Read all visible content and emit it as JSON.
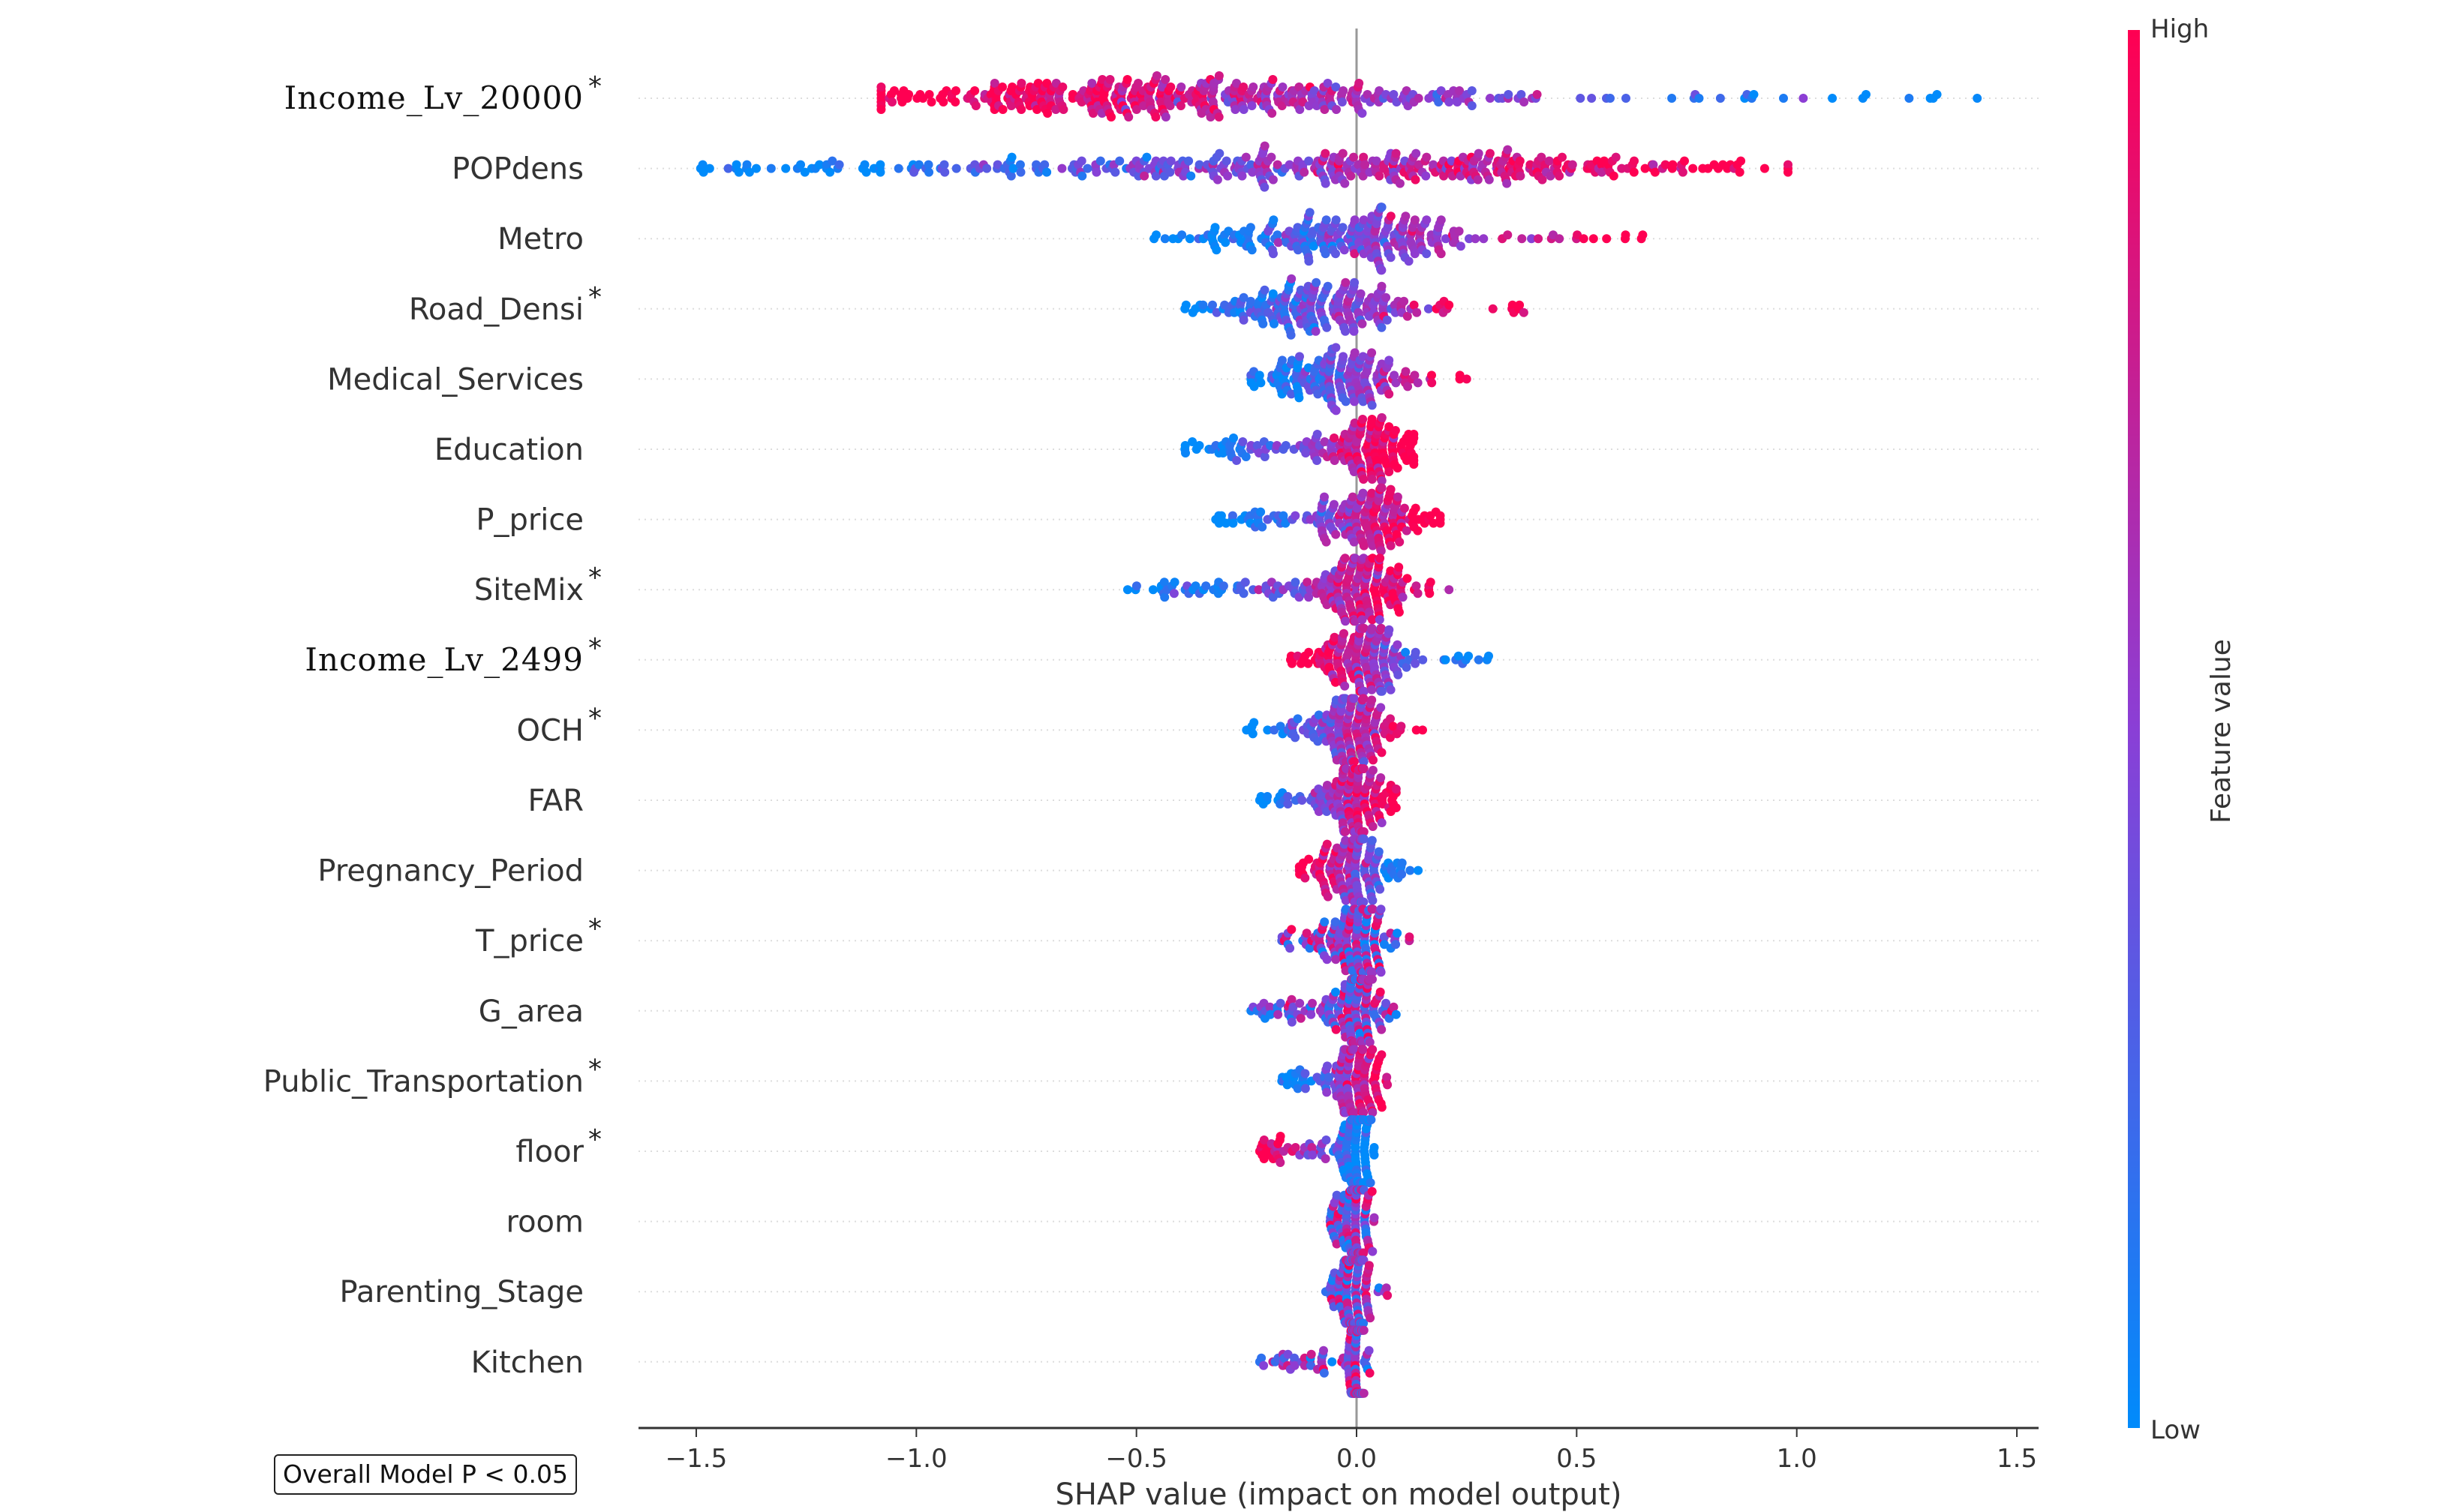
{
  "chart_data": {
    "type": "scatter",
    "subtype": "shap-beeswarm",
    "xlabel": "SHAP value (impact on model output)",
    "xlim": [
      -1.63,
      1.55
    ],
    "xticks": [
      -1.5,
      -1.0,
      -0.5,
      0.0,
      0.5,
      1.0,
      1.5
    ],
    "xtick_labels": [
      "−1.5",
      "−1.0",
      "−0.5",
      "0.0",
      "0.5",
      "1.0",
      "1.5"
    ],
    "colorbar": {
      "label": "Feature value",
      "high_label": "High",
      "low_label": "Low",
      "high_color": "#ff0052",
      "low_color": "#008bfb"
    },
    "annotation": "Overall Model P < 0.05",
    "features": [
      {
        "name": "Income_Lv_20000",
        "significant": true,
        "serif": true,
        "range": [
          -1.08,
          1.41
        ],
        "peak": -0.45,
        "spread": 0.3,
        "high_direction": "negative"
      },
      {
        "name": "POPdens",
        "significant": false,
        "range": [
          -1.49,
          0.98
        ],
        "peak": 0.05,
        "spread": 0.4,
        "high_direction": "positive"
      },
      {
        "name": "Metro",
        "significant": false,
        "range": [
          -0.46,
          0.65
        ],
        "peak": 0.0,
        "spread": 0.15,
        "high_direction": "positive"
      },
      {
        "name": "Road_Densi",
        "significant": true,
        "range": [
          -0.39,
          0.38
        ],
        "peak": -0.09,
        "spread": 0.1,
        "high_direction": "positive"
      },
      {
        "name": "Medical_Services",
        "significant": false,
        "range": [
          -0.24,
          0.25
        ],
        "peak": -0.03,
        "spread": 0.08,
        "high_direction": "positive"
      },
      {
        "name": "Education",
        "significant": false,
        "range": [
          -0.39,
          0.13
        ],
        "peak": 0.03,
        "spread": 0.06,
        "high_direction": "positive"
      },
      {
        "name": "P_price",
        "significant": false,
        "range": [
          -0.32,
          0.19
        ],
        "peak": 0.03,
        "spread": 0.06,
        "high_direction": "positive"
      },
      {
        "name": "SiteMix",
        "significant": true,
        "range": [
          -0.52,
          0.21
        ],
        "peak": 0.0,
        "spread": 0.07,
        "high_direction": "positive"
      },
      {
        "name": "Income_Lv_2499",
        "significant": true,
        "serif": true,
        "range": [
          -0.15,
          0.3
        ],
        "peak": 0.01,
        "spread": 0.05,
        "high_direction": "negative"
      },
      {
        "name": "OCH",
        "significant": true,
        "range": [
          -0.25,
          0.15
        ],
        "peak": 0.0,
        "spread": 0.05,
        "high_direction": "positive"
      },
      {
        "name": "FAR",
        "significant": false,
        "range": [
          -0.22,
          0.09
        ],
        "peak": 0.0,
        "spread": 0.04,
        "high_direction": "positive"
      },
      {
        "name": "Pregnancy_Period",
        "significant": false,
        "range": [
          -0.13,
          0.14
        ],
        "peak": 0.0,
        "spread": 0.04,
        "high_direction": "negative"
      },
      {
        "name": "T_price",
        "significant": true,
        "range": [
          -0.17,
          0.12
        ],
        "peak": 0.0,
        "spread": 0.04,
        "high_direction": "mixed"
      },
      {
        "name": "G_area",
        "significant": false,
        "range": [
          -0.24,
          0.09
        ],
        "peak": 0.0,
        "spread": 0.03,
        "high_direction": "mixed"
      },
      {
        "name": "Public_Transportation",
        "significant": true,
        "range": [
          -0.17,
          0.07
        ],
        "peak": 0.0,
        "spread": 0.03,
        "high_direction": "positive"
      },
      {
        "name": "floor",
        "significant": true,
        "range": [
          -0.22,
          0.04
        ],
        "peak": 0.0,
        "spread": 0.02,
        "high_direction": "negative"
      },
      {
        "name": "room",
        "significant": false,
        "range": [
          -0.06,
          0.04
        ],
        "peak": 0.0,
        "spread": 0.015,
        "high_direction": "mixed"
      },
      {
        "name": "Parenting_Stage",
        "significant": false,
        "range": [
          -0.07,
          0.07
        ],
        "peak": 0.0,
        "spread": 0.015,
        "high_direction": "mixed"
      },
      {
        "name": "Kitchen",
        "significant": false,
        "range": [
          -0.22,
          0.03
        ],
        "peak": 0.0,
        "spread": 0.01,
        "high_direction": "mixed"
      }
    ]
  }
}
